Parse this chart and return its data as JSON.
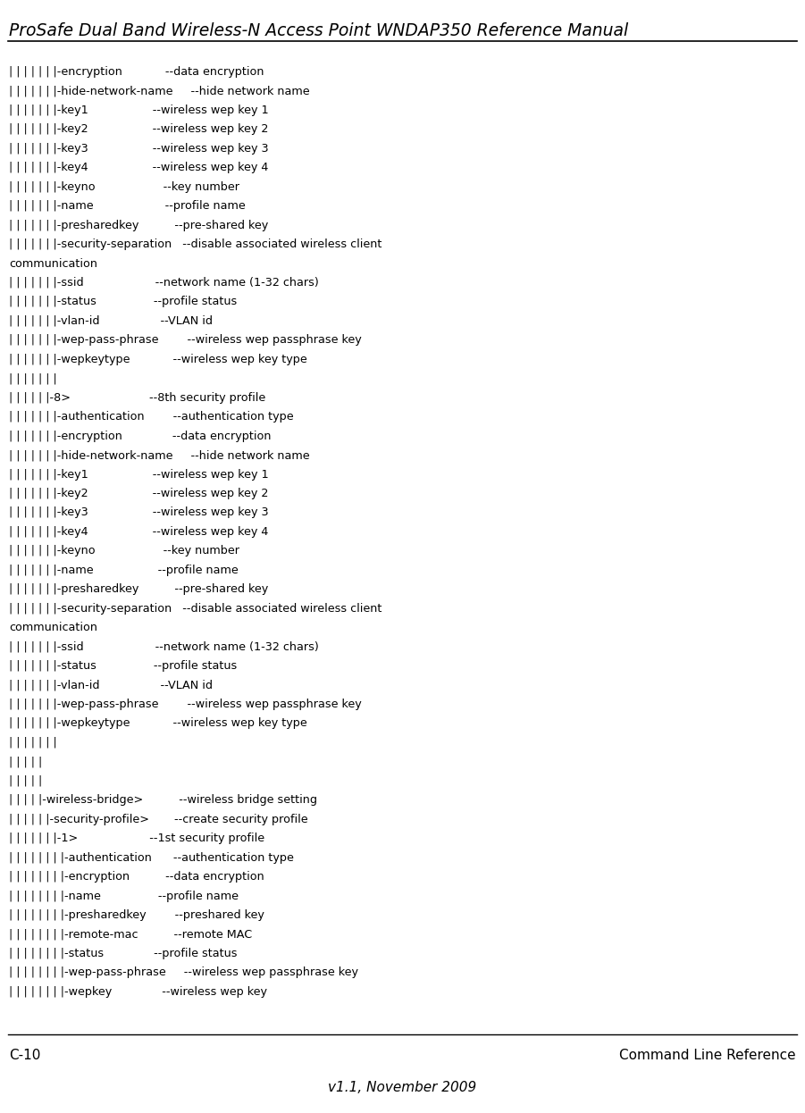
{
  "title": "ProSafe Dual Band Wireless-N Access Point WNDAP350 Reference Manual",
  "footer_left": "C-10",
  "footer_right": "Command Line Reference",
  "footer_center": "v1.1, November 2009",
  "bg_color": "#ffffff",
  "title_font_size": 13.5,
  "body_font_size": 9.2,
  "footer_font_size": 11,
  "lines": [
    "| | | | | | |-encryption            --data encryption",
    "| | | | | | |-hide-network-name     --hide network name",
    "| | | | | | |-key1                  --wireless wep key 1",
    "| | | | | | |-key2                  --wireless wep key 2",
    "| | | | | | |-key3                  --wireless wep key 3",
    "| | | | | | |-key4                  --wireless wep key 4",
    "| | | | | | |-keyno                   --key number",
    "| | | | | | |-name                    --profile name",
    "| | | | | | |-presharedkey          --pre-shared key",
    "| | | | | | |-security-separation   --disable associated wireless client",
    "communication",
    "| | | | | | |-ssid                    --network name (1-32 chars)",
    "| | | | | | |-status                --profile status",
    "| | | | | | |-vlan-id                 --VLAN id",
    "| | | | | | |-wep-pass-phrase        --wireless wep passphrase key",
    "| | | | | | |-wepkeytype            --wireless wep key type",
    "| | | | | | |",
    "| | | | | |-8>                      --8th security profile",
    "| | | | | | |-authentication        --authentication type",
    "| | | | | | |-encryption              --data encryption",
    "| | | | | | |-hide-network-name     --hide network name",
    "| | | | | | |-key1                  --wireless wep key 1",
    "| | | | | | |-key2                  --wireless wep key 2",
    "| | | | | | |-key3                  --wireless wep key 3",
    "| | | | | | |-key4                  --wireless wep key 4",
    "| | | | | | |-keyno                   --key number",
    "| | | | | | |-name                  --profile name",
    "| | | | | | |-presharedkey          --pre-shared key",
    "| | | | | | |-security-separation   --disable associated wireless client",
    "communication",
    "| | | | | | |-ssid                    --network name (1-32 chars)",
    "| | | | | | |-status                --profile status",
    "| | | | | | |-vlan-id                 --VLAN id",
    "| | | | | | |-wep-pass-phrase        --wireless wep passphrase key",
    "| | | | | | |-wepkeytype            --wireless wep key type",
    "| | | | | | |",
    "| | | | |",
    "| | | | |",
    "| | | | |-wireless-bridge>          --wireless bridge setting",
    "| | | | | |-security-profile>       --create security profile",
    "| | | | | | |-1>                    --1st security profile",
    "| | | | | | | |-authentication      --authentication type",
    "| | | | | | | |-encryption          --data encryption",
    "| | | | | | | |-name                --profile name",
    "| | | | | | | |-presharedkey        --preshared key",
    "| | | | | | | |-remote-mac          --remote MAC",
    "| | | | | | | |-status              --profile status",
    "| | | | | | | |-wep-pass-phrase     --wireless wep passphrase key",
    "| | | | | | | |-wepkey              --wireless wep key"
  ]
}
